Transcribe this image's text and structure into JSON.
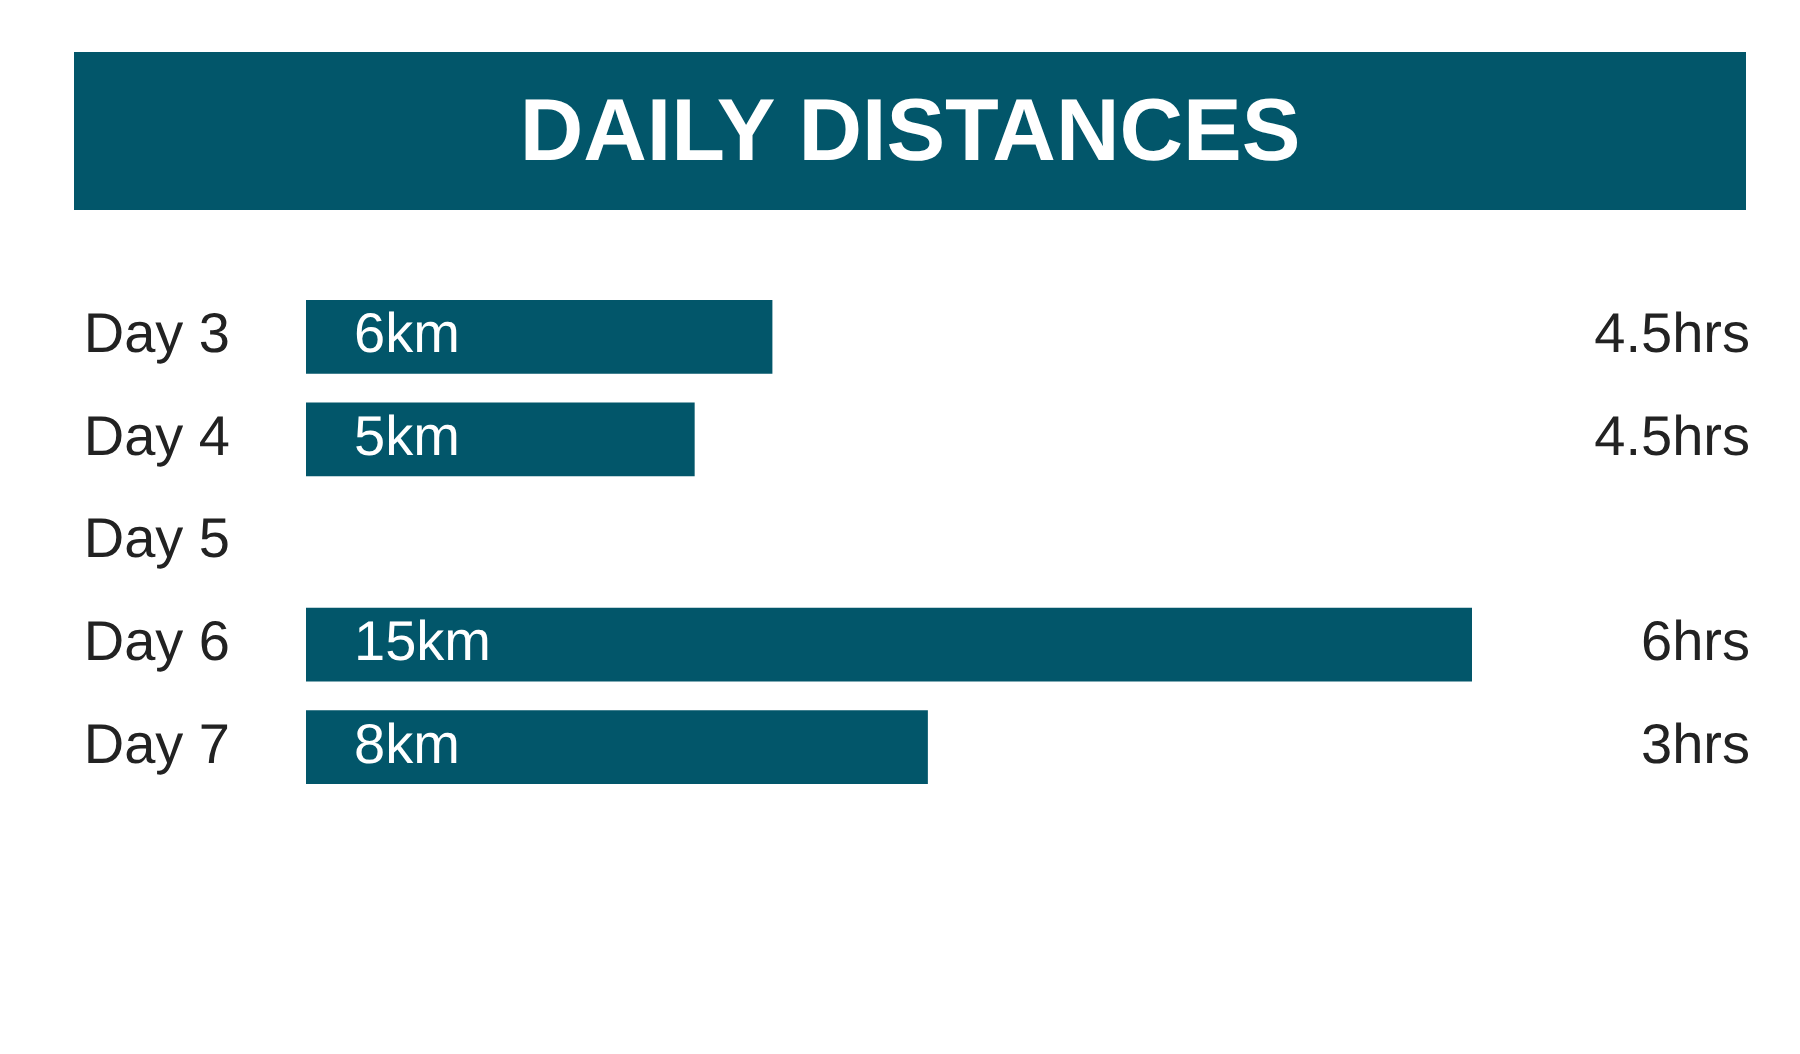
{
  "chart_data": {
    "type": "bar",
    "orientation": "horizontal",
    "title": "DAILY DISTANCES",
    "categories": [
      "Day 3",
      "Day 4",
      "Day 5",
      "Day 6",
      "Day 7"
    ],
    "values": [
      6,
      5,
      null,
      15,
      8
    ],
    "value_labels": [
      "6km",
      "5km",
      null,
      "15km",
      "8km"
    ],
    "color": "#02566a",
    "xlim": [
      0,
      15
    ],
    "tick_labels": "y",
    "grid": false,
    "legend": false,
    "annotations": [
      "4.5hrs",
      "4.5hrs",
      "6hrs",
      "3hrs"
    ]
  }
}
